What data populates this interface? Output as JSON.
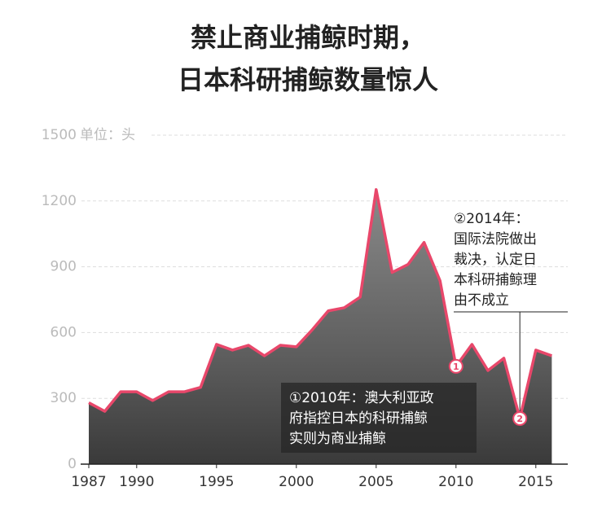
{
  "chart_data": {
    "type": "area",
    "title": [
      "禁止商业捕鲸时期，",
      "日本科研捕鲸数量惊人"
    ],
    "y_unit": "单位：头",
    "x": [
      1987,
      1988,
      1989,
      1990,
      1991,
      1992,
      1993,
      1994,
      1995,
      1996,
      1997,
      1998,
      1999,
      2000,
      2001,
      2002,
      2003,
      2004,
      2005,
      2006,
      2007,
      2008,
      2009,
      2010,
      2011,
      2012,
      2013,
      2014,
      2015,
      2016
    ],
    "series": [
      {
        "color": "#e8476a",
        "values": [
          280,
          241,
          330,
          330,
          290,
          330,
          330,
          350,
          546,
          520,
          542,
          494,
          542,
          535,
          613,
          699,
          713,
          762,
          1252,
          874,
          911,
          1011,
          836,
          446,
          546,
          427,
          483,
          208,
          520,
          494
        ]
      }
    ],
    "xlim": [
      1987,
      2017
    ],
    "xticks": [
      1987,
      1990,
      1995,
      2000,
      2005,
      2010,
      2015
    ],
    "ylim": [
      0,
      1500
    ],
    "yticks": [
      0,
      300,
      600,
      900,
      1200,
      1500
    ],
    "grid": true,
    "annotations": [
      {
        "x": 2010,
        "marker": "1",
        "lines": [
          "①2010年：澳大利亚政",
          "府指控日本的科研捕鲸",
          "实则为商业捕鲸"
        ]
      },
      {
        "x": 2014,
        "marker": "2",
        "lines": [
          "②2014年：",
          "国际法院做出",
          "裁决，认定日",
          "本科研捕鲸理",
          "由不成立"
        ]
      }
    ]
  }
}
